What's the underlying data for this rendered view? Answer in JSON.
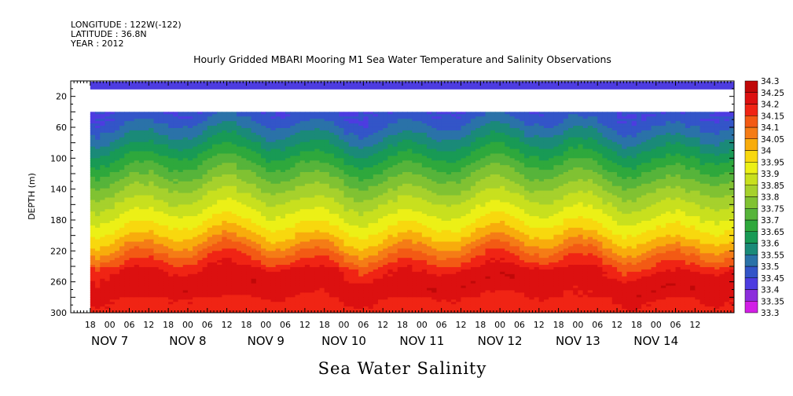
{
  "header": {
    "longitude": "LONGITUDE : 122W(-122)",
    "latitude": "LATITUDE : 36.8N",
    "year": "YEAR : 2012"
  },
  "colors": {
    "frame": "#000000",
    "background": "#ffffff"
  },
  "chart_data": {
    "type": "heatmap",
    "title": "Hourly Gridded MBARI Mooring M1 Sea Water Temperature and Salinity Observations",
    "bottom_title": "Sea Water Salinity",
    "ylabel": "DEPTH (m)",
    "ylim": [
      300,
      0
    ],
    "yticks": [
      20,
      60,
      100,
      140,
      180,
      220,
      260,
      300
    ],
    "yticks_labels": [
      "20",
      "60",
      "100",
      "140",
      "180",
      "220",
      "260",
      "300"
    ],
    "x_hour_labels": [
      "18",
      "00",
      "06",
      "12",
      "18",
      "00",
      "06",
      "12",
      "18",
      "00",
      "06",
      "12",
      "18",
      "00",
      "06",
      "12",
      "18",
      "00",
      "06",
      "12",
      "18",
      "00",
      "06",
      "12",
      "18",
      "00",
      "06",
      "12",
      "18",
      "00",
      "06",
      "12"
    ],
    "x_day_labels": [
      "NOV  7",
      "NOV  8",
      "NOV  9",
      "NOV 10",
      "NOV 11",
      "NOV 12",
      "NOV 13",
      "NOV 14"
    ],
    "x_range_hours_from_nov6_12h": [
      0,
      204
    ],
    "data_start_hours": 6,
    "surface_band_depth": [
      0,
      10
    ],
    "gap_depth": [
      10,
      40
    ],
    "colorbar": {
      "levels": [
        33.3,
        33.35,
        33.4,
        33.45,
        33.5,
        33.55,
        33.6,
        33.65,
        33.7,
        33.75,
        33.8,
        33.85,
        33.9,
        33.95,
        34,
        34.05,
        34.1,
        34.15,
        34.2,
        34.25,
        34.3
      ],
      "labels": [
        "33.3",
        "33.35",
        "33.4",
        "33.45",
        "33.5",
        "33.55",
        "33.6",
        "33.65",
        "33.7",
        "33.75",
        "33.8",
        "33.85",
        "33.9",
        "33.95",
        "34",
        "34.05",
        "34.1",
        "34.15",
        "34.2",
        "34.25",
        "34.3"
      ],
      "colors": [
        "#d21ee6",
        "#8c2ddc",
        "#4d3ce0",
        "#3355c8",
        "#2a72a8",
        "#1a8a78",
        "#189a55",
        "#2ea83c",
        "#56b43a",
        "#80c232",
        "#a6d12c",
        "#c8e01e",
        "#ecf016",
        "#f8d80e",
        "#f8ac0c",
        "#f57c16",
        "#f35a14",
        "#f02414",
        "#dc1010",
        "#c00808",
        "#9a0000"
      ]
    },
    "surface_value": 33.45,
    "profile_nodes": [
      {
        "depth": 40,
        "value": 33.45
      },
      {
        "depth": 60,
        "value": 33.52
      },
      {
        "depth": 90,
        "value": 33.63
      },
      {
        "depth": 120,
        "value": 33.74
      },
      {
        "depth": 150,
        "value": 33.84
      },
      {
        "depth": 180,
        "value": 33.93
      },
      {
        "depth": 205,
        "value": 34.02
      },
      {
        "depth": 225,
        "value": 34.12
      },
      {
        "depth": 245,
        "value": 34.2
      },
      {
        "depth": 265,
        "value": 34.22
      },
      {
        "depth": 290,
        "value": 34.18
      },
      {
        "depth": 300,
        "value": 34.17
      }
    ]
  }
}
